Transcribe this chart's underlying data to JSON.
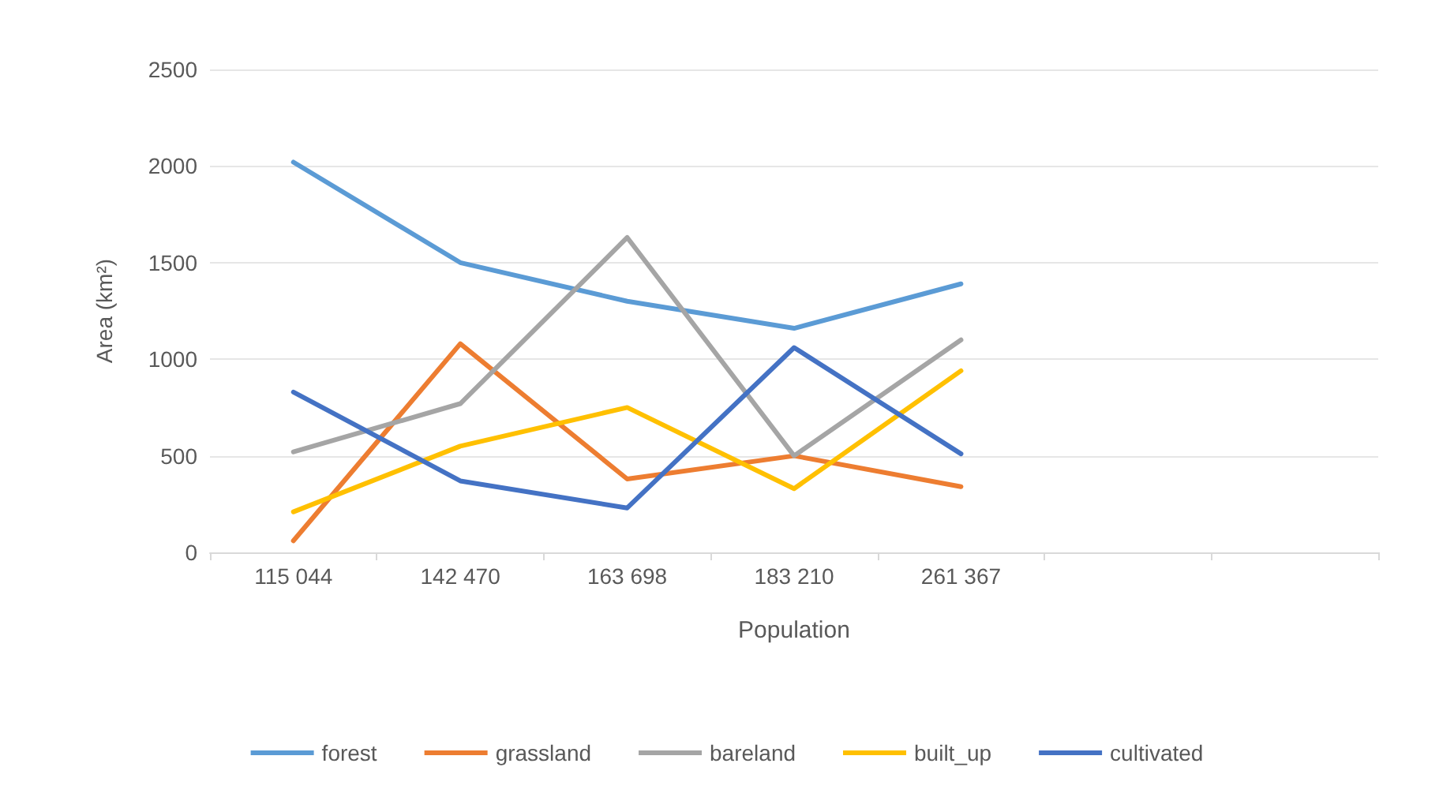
{
  "chart_data": {
    "type": "line",
    "xlabel": "Population",
    "ylabel": "Area (km²)",
    "categories": [
      "115 044",
      "142 470",
      "163 698",
      "183 210",
      "261 367",
      null,
      null
    ],
    "series": [
      {
        "name": "forest",
        "color": "#5b9bd5",
        "values": [
          2020,
          1500,
          1300,
          1160,
          1390,
          null,
          null
        ]
      },
      {
        "name": "grassland",
        "color": "#ed7d31",
        "values": [
          60,
          1080,
          380,
          500,
          340,
          null,
          null
        ]
      },
      {
        "name": "bareland",
        "color": "#a5a5a5",
        "values": [
          520,
          770,
          1630,
          500,
          1100,
          null,
          null
        ]
      },
      {
        "name": "built_up",
        "color": "#ffc000",
        "values": [
          210,
          550,
          750,
          330,
          940,
          null,
          null
        ]
      },
      {
        "name": "cultivated",
        "color": "#4472c4",
        "values": [
          830,
          370,
          230,
          1060,
          510,
          null,
          null
        ]
      }
    ],
    "ylim": [
      0,
      2500
    ],
    "yticks": [
      0,
      500,
      1000,
      1500,
      2000,
      2500
    ],
    "grid": "y",
    "legend": "bottom",
    "marker": "none",
    "line_style": "solid"
  }
}
